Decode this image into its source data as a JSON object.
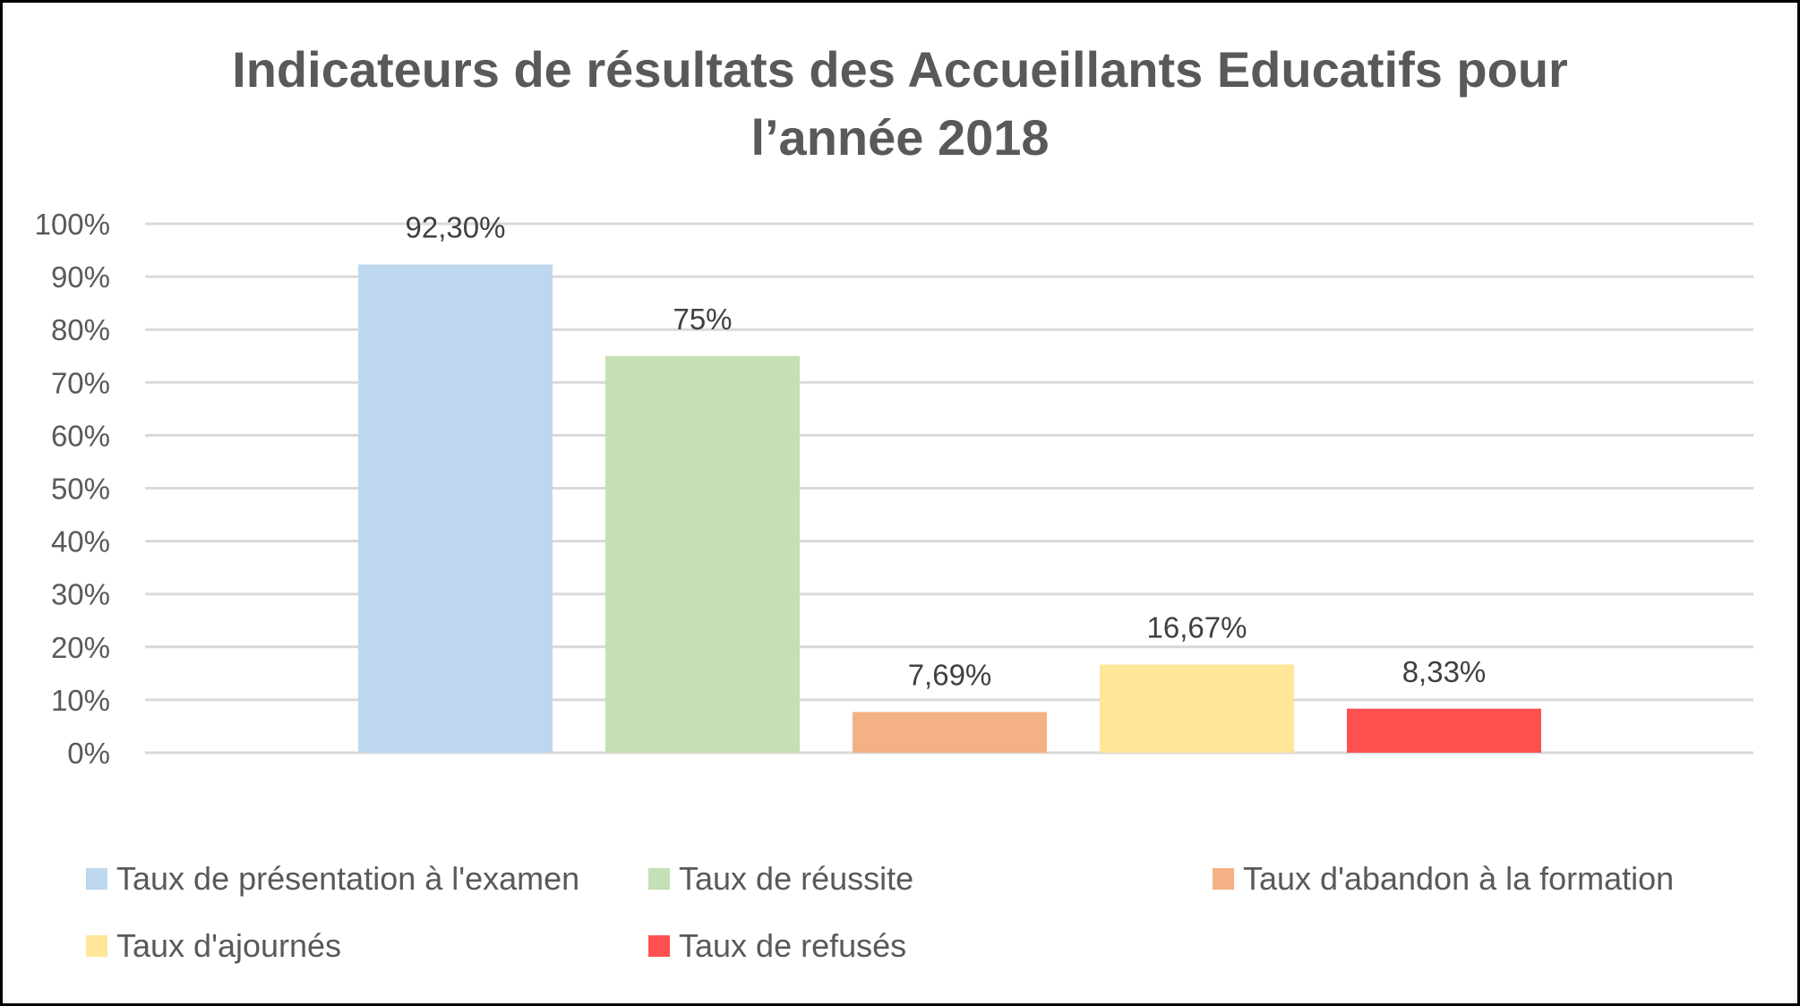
{
  "chart_data": {
    "type": "bar",
    "title": "Indicateurs de résultats des Accueillants Educatifs pour l’année 2018",
    "title_lines": [
      "Indicateurs de résultats des Accueillants Educatifs pour",
      "l’année 2018"
    ],
    "xlabel": "",
    "ylabel": "",
    "ylim": [
      0,
      100
    ],
    "yticks": [
      "0%",
      "10%",
      "20%",
      "30%",
      "40%",
      "50%",
      "60%",
      "70%",
      "80%",
      "90%",
      "100%"
    ],
    "grid": true,
    "legend_placement": "bottom",
    "series": [
      {
        "name": "Taux de présentation à l'examen",
        "value": 92.3,
        "label": "92,30%",
        "color": "#BDD7EE"
      },
      {
        "name": "Taux de réussite",
        "value": 75,
        "label": "75%",
        "color": "#C5E0B4"
      },
      {
        "name": "Taux d'abandon à la formation",
        "value": 7.69,
        "label": "7,69%",
        "color": "#F4B183"
      },
      {
        "name": "Taux d'ajournés",
        "value": 16.67,
        "label": "16,67%",
        "color": "#FFE699"
      },
      {
        "name": "Taux de refusés",
        "value": 8.33,
        "label": "8,33%",
        "color": "#FF5050"
      }
    ]
  }
}
